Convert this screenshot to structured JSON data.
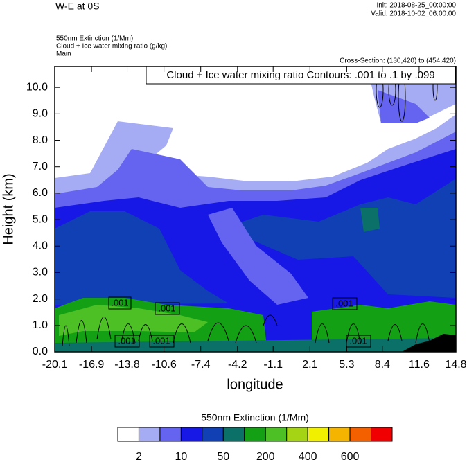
{
  "chart_data": {
    "type": "contour",
    "title": "W-E at 0S",
    "init": "Init: 2018-08-25_00:00:00",
    "valid": "Valid: 2018-10-02_06:00:00",
    "fill_field": "550nm Extinction   (1/Mm)",
    "contour_field": "Cloud + Ice water mixing ratio   (g/kg)",
    "domain": "Main",
    "cross_section": "Cross-Section: (130,420) to (454,420)",
    "contour_info": "Cloud + Ice water mixing ratio Contours: .001 to .1 by .099",
    "contour_labels": [
      ".001",
      ".001",
      ".001",
      ".001",
      ".001",
      ".001"
    ],
    "ylabel": "Height (km)",
    "xlabel": "longitude",
    "xlim": [
      -20.1,
      14.8
    ],
    "xticks": [
      -20.1,
      -16.9,
      -13.8,
      -10.6,
      -7.4,
      -4.2,
      -1.1,
      2.1,
      5.3,
      8.4,
      11.6,
      14.8
    ],
    "ylim": [
      0,
      10.79
    ],
    "yticks": [
      {
        "value": 0,
        "label": "0.0"
      },
      {
        "value": 1,
        "label": "1.0"
      },
      {
        "value": 2,
        "label": "2.0"
      },
      {
        "value": 3,
        "label": "3.0"
      },
      {
        "value": 4,
        "label": "4.0"
      },
      {
        "value": 5,
        "label": "5.0"
      },
      {
        "value": 6,
        "label": "6.0"
      },
      {
        "value": 7,
        "label": "7.0"
      },
      {
        "value": 8,
        "label": "8.0"
      },
      {
        "value": 9,
        "label": "9.0"
      },
      {
        "value": 10,
        "label": "10.0"
      }
    ],
    "colorbar": {
      "title": "550nm Extinction  (1/Mm)",
      "colors": [
        "#ffffff",
        "#a6acf4",
        "#6464f0",
        "#1818e6",
        "#1040b4",
        "#0a7068",
        "#14a014",
        "#4cc024",
        "#a4d414",
        "#f0f000",
        "#f4b400",
        "#f46000",
        "#f00000"
      ],
      "labels": [
        2,
        10,
        50,
        200,
        400,
        600
      ]
    }
  }
}
